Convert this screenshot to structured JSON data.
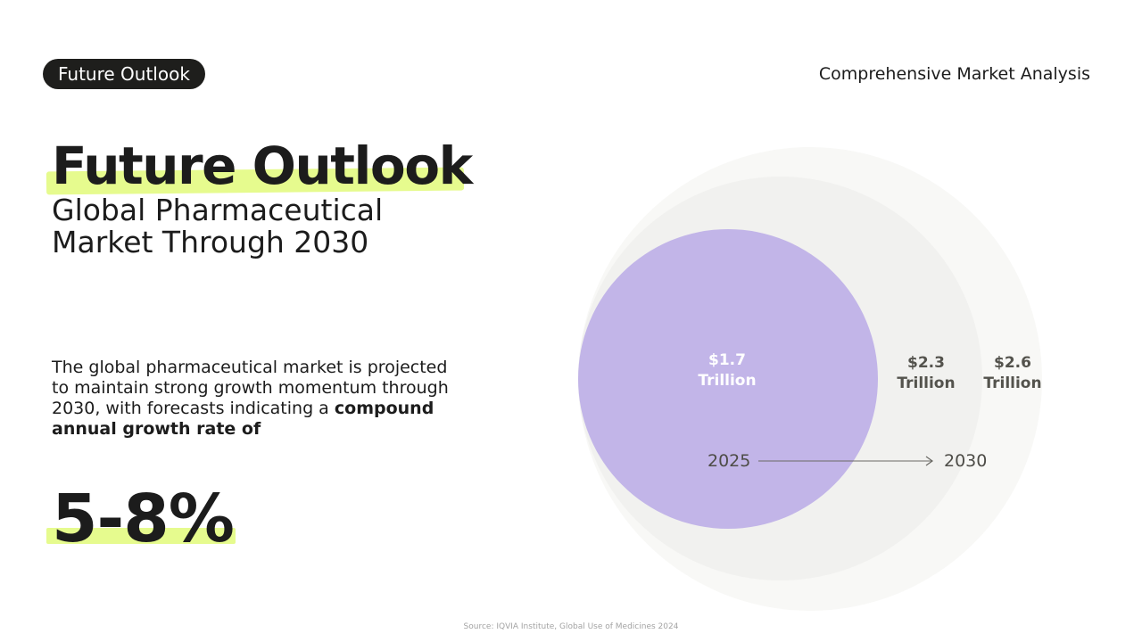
{
  "header": {
    "badge": "Future Outlook",
    "section": "Comprehensive Market Analysis"
  },
  "title": "Future Outlook",
  "subtitle": "Global Pharmaceutical Market Through 2030",
  "description": {
    "text": "The global pharmaceutical market is projected to maintain strong growth momentum through 2030, with forecasts indicating a",
    "bold": "compound annual growth rate of"
  },
  "stat": "5-8%",
  "diagram": {
    "circles": [
      {
        "value": "$1.7",
        "unit": "Trillion",
        "color": "#c2b5e8"
      },
      {
        "value": "$2.3",
        "unit": "Trillion",
        "color": "#f1f1ef"
      },
      {
        "value": "$2.6",
        "unit": "Trillion",
        "color": "#f8f8f6"
      }
    ],
    "year_start": "2025",
    "year_end": "2030"
  },
  "source": "Source: IQVIA Institute, Global Use of Medicines 2024",
  "colors": {
    "accent": "#e6fb8e",
    "badge": "#1e1e1c",
    "text": "#1c1c1c"
  }
}
